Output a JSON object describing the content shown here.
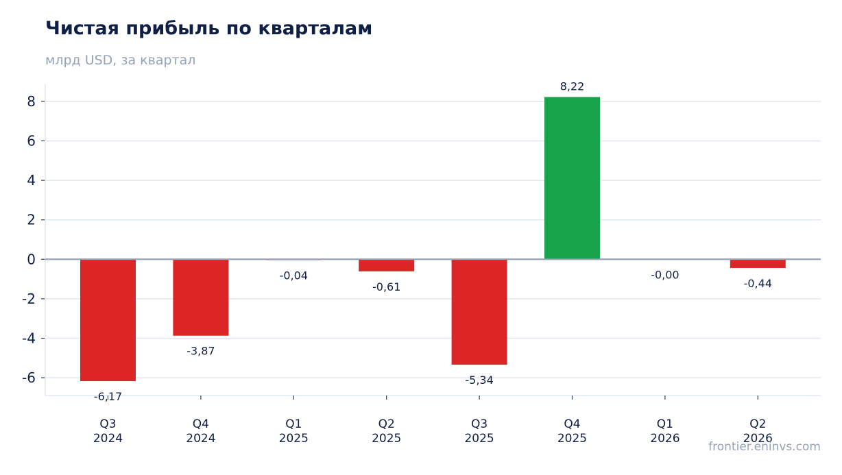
{
  "header": {
    "title": "Чистая прибыль по кварталам",
    "subtitle": "млрд USD, за квартал"
  },
  "footer": {
    "watermark": "frontier.eninvs.com"
  },
  "colors": {
    "positive": "#16a34a",
    "negative": "#dc2626",
    "grid": "#e2e8f0",
    "axis": "#94a3b8",
    "text": "#0f1f45"
  },
  "chart_data": {
    "type": "bar",
    "title": "Чистая прибыль по кварталам",
    "subtitle": "млрд USD, за квартал",
    "xlabel": "",
    "ylabel": "",
    "categories": [
      [
        "Q3",
        "2024"
      ],
      [
        "Q4",
        "2024"
      ],
      [
        "Q1",
        "2025"
      ],
      [
        "Q2",
        "2025"
      ],
      [
        "Q3",
        "2025"
      ],
      [
        "Q4",
        "2025"
      ],
      [
        "Q1",
        "2026"
      ],
      [
        "Q2",
        "2026"
      ]
    ],
    "values": [
      -6.17,
      -3.87,
      -0.04,
      -0.61,
      -5.34,
      8.22,
      -0.001,
      -0.44
    ],
    "value_labels": [
      "-6,17",
      "-3,87",
      "-0,04",
      "-0,61",
      "-5,34",
      "8,22",
      "-0,00",
      "-0,44"
    ],
    "ylim": [
      -6.9,
      8.9
    ],
    "yticks": [
      -6,
      -4,
      -2,
      0,
      2,
      4,
      6,
      8
    ],
    "ytick_labels": [
      "-6",
      "-4",
      "-2",
      "0",
      "2",
      "4",
      "6",
      "8"
    ],
    "grid": true,
    "legend": "none"
  }
}
